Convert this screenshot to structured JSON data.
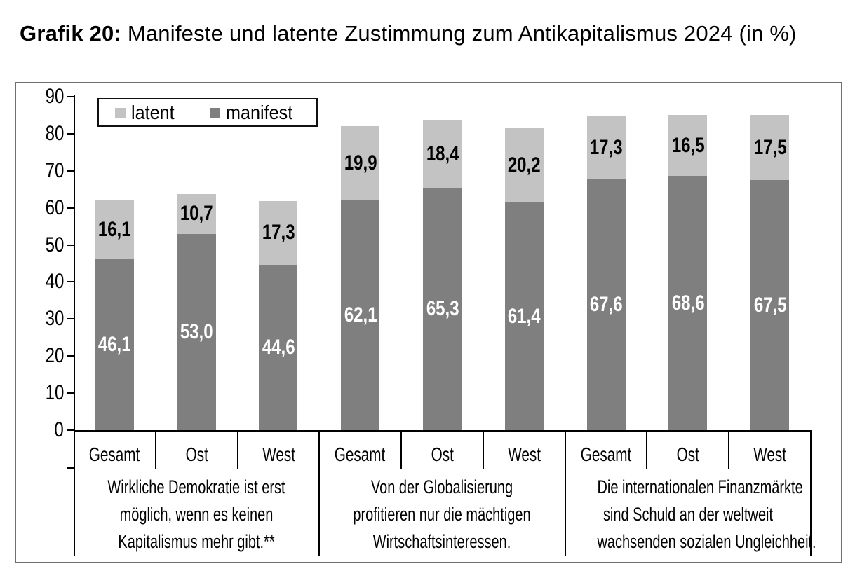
{
  "title": {
    "prefix": "Grafik 20:",
    "rest": "Manifeste und latente Zustimmung zum Antikapitalismus 2024 (in %)"
  },
  "legend": {
    "items": [
      {
        "label": "latent"
      },
      {
        "label": "manifest"
      }
    ]
  },
  "chart_data": {
    "type": "bar",
    "stacked": true,
    "unit": "%",
    "title": "Grafik 20: Manifeste und latente Zustimmung zum Antikapitalismus 2024 (in %)",
    "ylim": [
      0,
      90
    ],
    "ytick_step": 10,
    "yticks": [
      0,
      10,
      20,
      30,
      40,
      50,
      60,
      70,
      80,
      90
    ],
    "grid": false,
    "legend_position": "top-left",
    "series_order_bottom_to_top": [
      "manifest",
      "latent"
    ],
    "series_style": {
      "manifest": {
        "fill": "#7f7f7f",
        "label_color": "#ffffff"
      },
      "latent": {
        "fill": "#c3c3c3",
        "label_color": "#000000"
      }
    },
    "axis_color": "#000000",
    "frame_color": "#6f6f6f",
    "groups": [
      {
        "statement_lines": [
          "Wirkliche Demokratie ist erst",
          "möglich, wenn es keinen",
          "Kapitalismus mehr gibt.**"
        ],
        "bars": [
          {
            "category": "Gesamt",
            "manifest": 46.1,
            "latent": 16.1,
            "manifest_label": "46,1",
            "latent_label": "16,1"
          },
          {
            "category": "Ost",
            "manifest": 53.0,
            "latent": 10.7,
            "manifest_label": "53,0",
            "latent_label": "10,7"
          },
          {
            "category": "West",
            "manifest": 44.6,
            "latent": 17.3,
            "manifest_label": "44,6",
            "latent_label": "17,3"
          }
        ]
      },
      {
        "statement_lines": [
          "Von der Globalisierung",
          "profitieren nur die mächtigen",
          "Wirtschaftsinteressen."
        ],
        "bars": [
          {
            "category": "Gesamt",
            "manifest": 62.1,
            "latent": 19.9,
            "manifest_label": "62,1",
            "latent_label": "19,9"
          },
          {
            "category": "Ost",
            "manifest": 65.3,
            "latent": 18.4,
            "manifest_label": "65,3",
            "latent_label": "18,4"
          },
          {
            "category": "West",
            "manifest": 61.4,
            "latent": 20.2,
            "manifest_label": "61,4",
            "latent_label": "20,2"
          }
        ]
      },
      {
        "statement_lines": [
          "Die internationalen Finanzmärkte",
          "sind Schuld an der weltweit",
          "wachsenden sozialen Ungleichheit."
        ],
        "bars": [
          {
            "category": "Gesamt",
            "manifest": 67.6,
            "latent": 17.3,
            "manifest_label": "67,6",
            "latent_label": "17,3"
          },
          {
            "category": "Ost",
            "manifest": 68.6,
            "latent": 16.5,
            "manifest_label": "68,6",
            "latent_label": "16,5"
          },
          {
            "category": "West",
            "manifest": 67.5,
            "latent": 17.5,
            "manifest_label": "67,5",
            "latent_label": "17,5"
          }
        ]
      }
    ]
  }
}
